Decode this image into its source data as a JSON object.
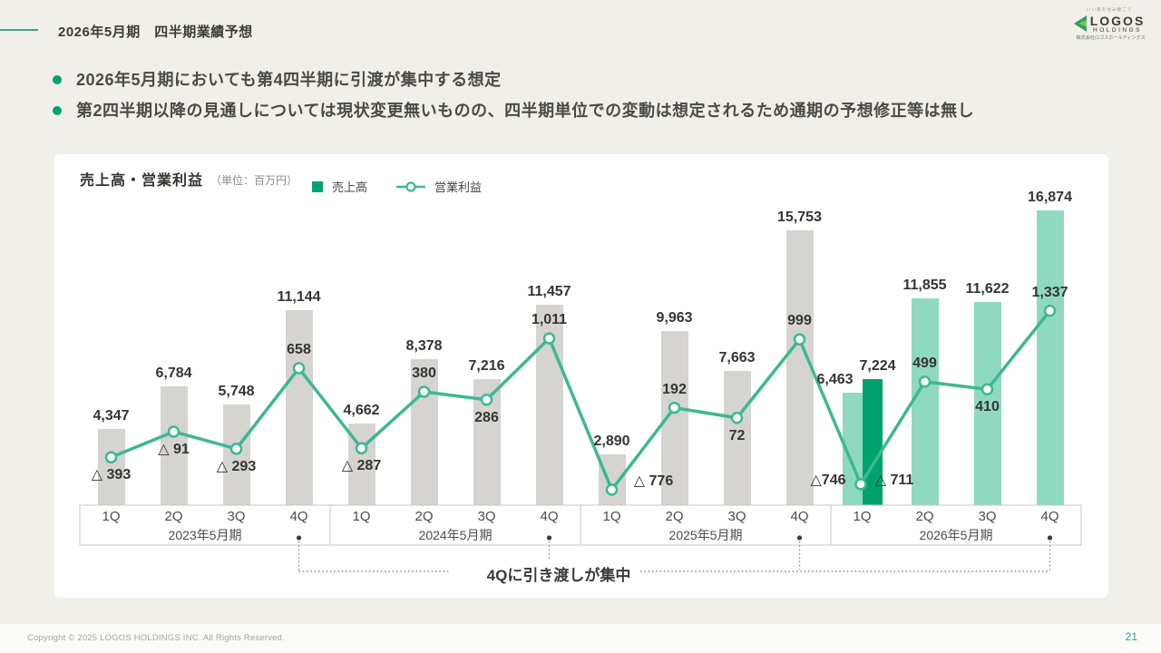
{
  "header": {
    "title": "2026年5月期　四半期業績予想"
  },
  "logo": {
    "tagline": "いい家を住み継ごう",
    "name": "LOGOS",
    "subname": "HOLDINGS",
    "company": "株式会社ロゴスホールディングス"
  },
  "bullets": [
    "2026年5月期においても第4四半期に引渡が集中する想定",
    "第2四半期以降の見通しについては現状変更無いものの、四半期単位での変動は想定されるため通期の予想修正等は無し"
  ],
  "annotation": "4Qに引き渡しが集中",
  "footer": {
    "copyright": "Copyright © 2025 LOGOS HOLDINGS INC. All Rights Reserved.",
    "page_number": "21"
  },
  "colors": {
    "accent": "#00a273",
    "bar_past": "#d5d4d1",
    "bar_forecast": "#8fd9c1",
    "bar_actual": "#00a36d",
    "line": "#3cb893",
    "axis": "#c8c7c3",
    "callout": "#8a8a86",
    "page_number": "#2f9d8e"
  },
  "chart_data": {
    "type": "bar+line",
    "title": "売上高・営業利益",
    "unit": "（単位：百万円）",
    "bar_series": "売上高",
    "line_series": "営業利益",
    "legend_position": "top",
    "value_axis": "hidden (values shown as data labels, unit: million yen)",
    "groups": [
      {
        "year": "2023年5月期",
        "quarters": [
          "1Q",
          "2Q",
          "3Q",
          "4Q"
        ],
        "revenue": [
          4347,
          6784,
          5748,
          11144
        ],
        "revenue_labels": [
          "4,347",
          "6,784",
          "5,748",
          "11,144"
        ],
        "profit": [
          -393,
          -91,
          -293,
          658
        ],
        "profit_labels": [
          "△ 393",
          "△ 91",
          "△ 293",
          "658"
        ]
      },
      {
        "year": "2024年5月期",
        "quarters": [
          "1Q",
          "2Q",
          "3Q",
          "4Q"
        ],
        "revenue": [
          4662,
          8378,
          7216,
          11457
        ],
        "revenue_labels": [
          "4,662",
          "8,378",
          "7,216",
          "11,457"
        ],
        "profit": [
          -287,
          380,
          286,
          1011
        ],
        "profit_labels": [
          "△ 287",
          "380",
          "286",
          "1,011"
        ]
      },
      {
        "year": "2025年5月期",
        "quarters": [
          "1Q",
          "2Q",
          "3Q",
          "4Q"
        ],
        "revenue": [
          2890,
          9963,
          7663,
          15753
        ],
        "revenue_labels": [
          "2,890",
          "9,963",
          "7,663",
          "15,753"
        ],
        "profit": [
          -776,
          192,
          72,
          999
        ],
        "profit_labels": [
          "△ 776",
          "192",
          "72",
          "999"
        ]
      },
      {
        "year": "2026年5月期",
        "quarters": [
          "1Q",
          "2Q",
          "3Q",
          "4Q"
        ],
        "revenue": [
          [
            6463,
            7224
          ],
          11855,
          11622,
          16874
        ],
        "revenue_labels": [
          [
            "6,463",
            "7,224"
          ],
          "11,855",
          "11,622",
          "16,874"
        ],
        "profit": [
          [
            -746,
            -711
          ],
          499,
          410,
          1337
        ],
        "profit_labels": [
          [
            "△746",
            "△ 711"
          ],
          "499",
          "410",
          "1,337"
        ]
      }
    ]
  }
}
